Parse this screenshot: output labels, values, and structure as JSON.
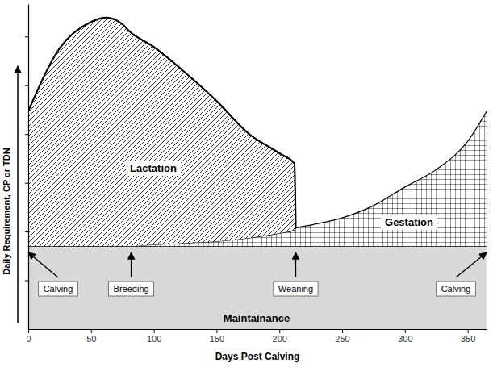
{
  "chart_data": {
    "type": "area",
    "stacked": true,
    "xlabel": "Days Post Calving",
    "ylabel": "Daily Requirement, CP or TDN",
    "x": [
      0,
      25,
      50,
      62,
      75,
      80,
      100,
      125,
      150,
      175,
      200,
      212,
      213,
      225,
      250,
      275,
      300,
      325,
      350,
      365
    ],
    "series": [
      {
        "name": "Maintainance",
        "color": "#d9d9d9",
        "values": [
          25.5,
          25.5,
          25.5,
          25.5,
          25.5,
          25.5,
          25.5,
          25.5,
          25.5,
          25.5,
          25.5,
          25.5,
          25.5,
          25.5,
          25.5,
          25.5,
          25.5,
          25.5,
          25.5,
          25.5
        ]
      },
      {
        "name": "Gestation",
        "color": "#000000",
        "values": [
          null,
          null,
          null,
          null,
          null,
          0,
          0.5,
          1,
          1.5,
          2.5,
          4,
          5,
          5.5,
          6.5,
          8.7,
          12.5,
          18.2,
          23.6,
          32.3,
          41.5
        ]
      },
      {
        "name": "Lactation",
        "color": "#000000",
        "values": [
          41.5,
          60.9,
          69,
          70.3,
          68.3,
          66.3,
          60.8,
          52.4,
          43.2,
          32.3,
          24.6,
          20.4,
          0,
          null,
          null,
          null,
          null,
          null,
          null,
          null
        ]
      }
    ],
    "xlim": [
      0,
      365
    ],
    "ylim": [
      0,
      100
    ],
    "xticks": [
      0,
      50,
      100,
      150,
      200,
      250,
      300,
      350
    ],
    "yticks": [
      15,
      30,
      45,
      60,
      75,
      90
    ],
    "tick_labels": "x",
    "grid": false,
    "annotations": [
      {
        "text": "Calving",
        "x": 0
      },
      {
        "text": "Breeding",
        "x": 82
      },
      {
        "text": "Weaning",
        "x": 213
      },
      {
        "text": "Calving",
        "x": 365
      }
    ]
  }
}
